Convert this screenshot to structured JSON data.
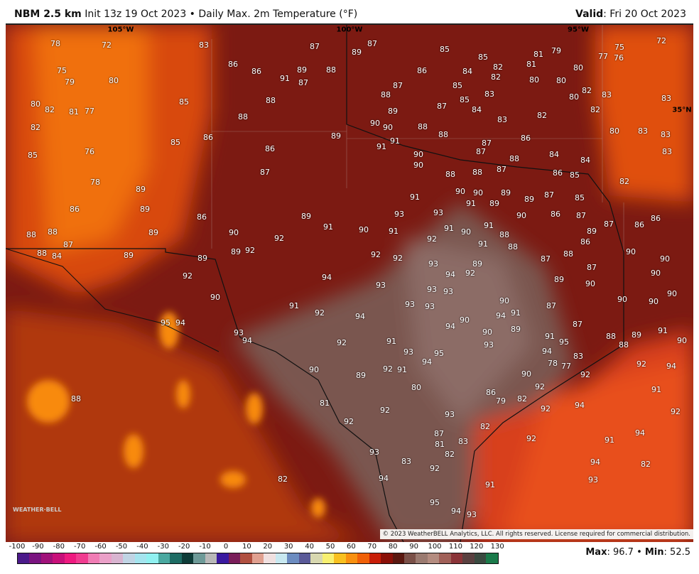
{
  "header": {
    "model": "NBM 2.5 km",
    "description": "Init 13z 19 Oct 2023 • Daily Max. 2m Temperature (°F)",
    "valid_label": "Valid",
    "valid_value": ": Fri 20 Oct 2023"
  },
  "copyright": "© 2023 WeatherBELL Analytics, LLC. All rights reserved. License required for commercial distribution.",
  "logo": "WeatherBELL",
  "coords": [
    "105°W",
    "100°W",
    "95°W",
    "35°N"
  ],
  "stats": {
    "max_label": "Max",
    "max": ": 96.7",
    "sep": " • ",
    "min_label": "Min",
    "min": ": 52.5"
  },
  "colorbar": {
    "ticks": [
      "-100",
      "-90",
      "-80",
      "-70",
      "-60",
      "-50",
      "-40",
      "-30",
      "-20",
      "-10",
      "0",
      "10",
      "20",
      "30",
      "40",
      "50",
      "60",
      "70",
      "80",
      "90",
      "100",
      "110",
      "120",
      "130"
    ],
    "colors": [
      "#4b1a8a",
      "#7a1480",
      "#a0127a",
      "#c8107a",
      "#ee1a80",
      "#f03c90",
      "#f07cb4",
      "#eaa0c8",
      "#d8b4d0",
      "#c0d4e4",
      "#a4e4ee",
      "#90f0f0",
      "#4aa8a0",
      "#1e6c64",
      "#0e3c38",
      "#6e9a98",
      "#b8b8b8",
      "#3a1aa0",
      "#7a1e5a",
      "#b05040",
      "#e0a090",
      "#f0e0e0",
      "#c8e8f0",
      "#6c8cc0",
      "#5a5a98",
      "#d8d8b0",
      "#f8f070",
      "#f8c020",
      "#f89010",
      "#f06008",
      "#c81e08",
      "#8a1008",
      "#5a1810",
      "#7a5048",
      "#9a7a70",
      "#b48c80",
      "#a06058",
      "#8a3438",
      "#5a4040",
      "#3a4a40",
      "#1a7a4a"
    ]
  },
  "temperatures": [
    "78",
    "72",
    "83",
    "87",
    "89",
    "87",
    "85",
    "85",
    "82",
    "81",
    "79",
    "81",
    "77",
    "76",
    "75",
    "72",
    "75",
    "79",
    "80",
    "86",
    "86",
    "91",
    "89",
    "87",
    "88",
    "86",
    "84",
    "82",
    "80",
    "80",
    "80",
    "85",
    "87",
    "80",
    "82",
    "81",
    "77",
    "85",
    "88",
    "88",
    "87",
    "85",
    "83",
    "84",
    "83",
    "82",
    "80",
    "82",
    "82",
    "83",
    "83",
    "82",
    "88",
    "89",
    "90",
    "90",
    "88",
    "88",
    "80",
    "83",
    "83",
    "85",
    "76",
    "85",
    "86",
    "89",
    "91",
    "91",
    "87",
    "87",
    "86",
    "83",
    "86",
    "90",
    "90",
    "88",
    "84",
    "84",
    "87",
    "88",
    "88",
    "87",
    "86",
    "85",
    "82",
    "78",
    "89",
    "90",
    "90",
    "89",
    "91",
    "91",
    "89",
    "89",
    "87",
    "85",
    "86",
    "89",
    "89",
    "91",
    "93",
    "93",
    "90",
    "86",
    "87",
    "87",
    "86",
    "86",
    "86",
    "88",
    "88",
    "89",
    "90",
    "92",
    "90",
    "91",
    "92",
    "91",
    "90",
    "91",
    "88",
    "89",
    "86",
    "87",
    "88",
    "84",
    "89",
    "89",
    "89",
    "92",
    "92",
    "92",
    "91",
    "88",
    "87",
    "88",
    "87",
    "90",
    "90",
    "92",
    "94",
    "93",
    "94",
    "92",
    "89",
    "89",
    "90",
    "90",
    "90",
    "93",
    "93",
    "93",
    "90",
    "90",
    "90",
    "90",
    "91",
    "92",
    "94",
    "93",
    "93",
    "94",
    "91",
    "87",
    "87",
    "95",
    "94",
    "94",
    "90",
    "90",
    "89",
    "88",
    "88",
    "89",
    "91",
    "90",
    "93",
    "94",
    "92",
    "91",
    "93",
    "91",
    "95",
    "94",
    "93",
    "95",
    "94",
    "92",
    "91",
    "90",
    "89",
    "78",
    "77",
    "83",
    "92",
    "94",
    "92",
    "90",
    "80",
    "86",
    "92",
    "91",
    "88",
    "81",
    "79",
    "82",
    "94",
    "92",
    "92",
    "92",
    "93",
    "92",
    "87",
    "81",
    "83",
    "82",
    "92",
    "94",
    "91",
    "93",
    "82",
    "83",
    "92",
    "94",
    "82",
    "82",
    "94",
    "93",
    "91",
    "95",
    "94",
    "93"
  ]
}
